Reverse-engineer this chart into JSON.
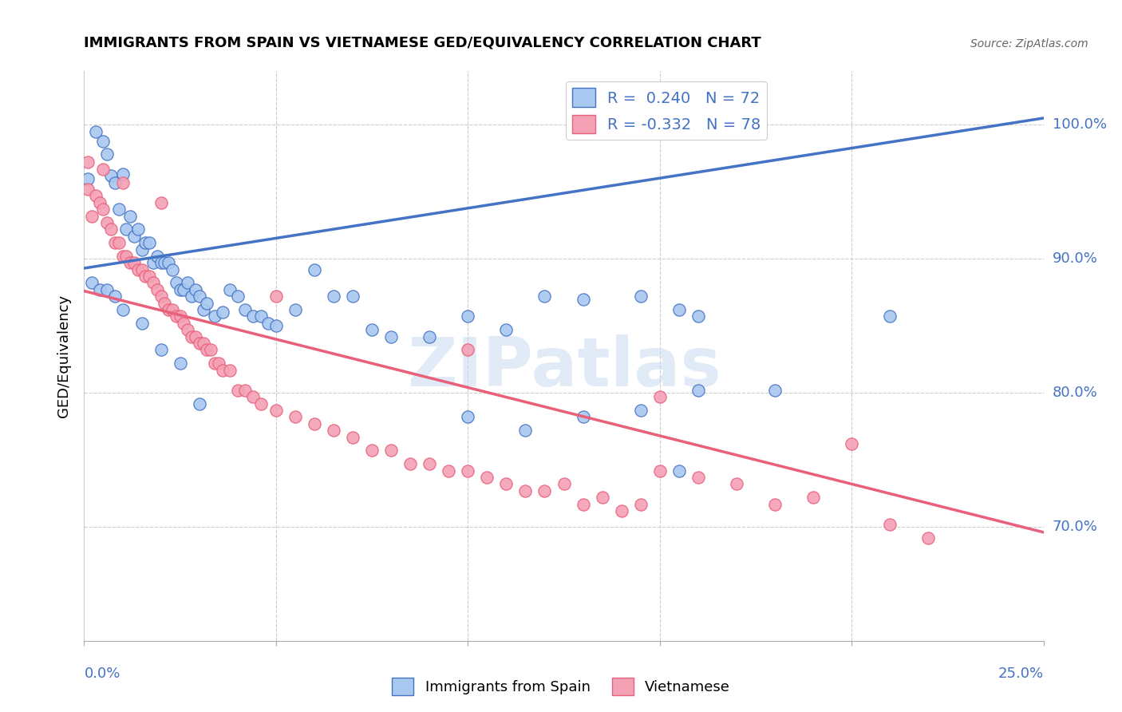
{
  "title": "IMMIGRANTS FROM SPAIN VS VIETNAMESE GED/EQUIVALENCY CORRELATION CHART",
  "source": "Source: ZipAtlas.com",
  "ylabel": "GED/Equivalency",
  "ytick_labels": [
    "70.0%",
    "80.0%",
    "90.0%",
    "100.0%"
  ],
  "ytick_values": [
    0.7,
    0.8,
    0.9,
    1.0
  ],
  "xlim": [
    0.0,
    0.25
  ],
  "ylim": [
    0.615,
    1.04
  ],
  "watermark": "ZIPatlas",
  "blue_line": {
    "x0": 0.0,
    "y0": 0.893,
    "x1": 0.25,
    "y1": 1.005
  },
  "pink_line": {
    "x0": 0.0,
    "y0": 0.876,
    "x1": 0.25,
    "y1": 0.696
  },
  "blue_color": "#4472C4",
  "pink_color": "#E8607A",
  "dot_blue_fill": "#A8C8F0",
  "dot_pink_fill": "#F4A0B5",
  "blue_scatter": [
    [
      0.001,
      0.96
    ],
    [
      0.003,
      0.995
    ],
    [
      0.005,
      0.988
    ],
    [
      0.006,
      0.978
    ],
    [
      0.007,
      0.962
    ],
    [
      0.008,
      0.957
    ],
    [
      0.009,
      0.937
    ],
    [
      0.01,
      0.963
    ],
    [
      0.011,
      0.922
    ],
    [
      0.012,
      0.932
    ],
    [
      0.013,
      0.917
    ],
    [
      0.014,
      0.922
    ],
    [
      0.015,
      0.907
    ],
    [
      0.016,
      0.912
    ],
    [
      0.017,
      0.912
    ],
    [
      0.018,
      0.897
    ],
    [
      0.019,
      0.902
    ],
    [
      0.02,
      0.897
    ],
    [
      0.021,
      0.897
    ],
    [
      0.022,
      0.897
    ],
    [
      0.023,
      0.892
    ],
    [
      0.024,
      0.882
    ],
    [
      0.025,
      0.877
    ],
    [
      0.026,
      0.877
    ],
    [
      0.027,
      0.882
    ],
    [
      0.028,
      0.872
    ],
    [
      0.029,
      0.877
    ],
    [
      0.03,
      0.872
    ],
    [
      0.031,
      0.862
    ],
    [
      0.032,
      0.867
    ],
    [
      0.034,
      0.857
    ],
    [
      0.036,
      0.86
    ],
    [
      0.038,
      0.877
    ],
    [
      0.04,
      0.872
    ],
    [
      0.042,
      0.862
    ],
    [
      0.044,
      0.857
    ],
    [
      0.046,
      0.857
    ],
    [
      0.048,
      0.852
    ],
    [
      0.05,
      0.85
    ],
    [
      0.055,
      0.862
    ],
    [
      0.06,
      0.892
    ],
    [
      0.065,
      0.872
    ],
    [
      0.07,
      0.872
    ],
    [
      0.075,
      0.847
    ],
    [
      0.08,
      0.842
    ],
    [
      0.09,
      0.842
    ],
    [
      0.1,
      0.857
    ],
    [
      0.11,
      0.847
    ],
    [
      0.12,
      0.872
    ],
    [
      0.13,
      0.87
    ],
    [
      0.145,
      0.872
    ],
    [
      0.155,
      0.862
    ],
    [
      0.1,
      0.782
    ],
    [
      0.115,
      0.772
    ],
    [
      0.13,
      0.782
    ],
    [
      0.145,
      0.787
    ],
    [
      0.16,
      0.802
    ],
    [
      0.18,
      0.802
    ],
    [
      0.002,
      0.882
    ],
    [
      0.004,
      0.877
    ],
    [
      0.006,
      0.877
    ],
    [
      0.008,
      0.872
    ],
    [
      0.01,
      0.862
    ],
    [
      0.015,
      0.852
    ],
    [
      0.02,
      0.832
    ],
    [
      0.025,
      0.822
    ],
    [
      0.03,
      0.792
    ],
    [
      0.155,
      0.742
    ],
    [
      0.21,
      0.857
    ],
    [
      0.16,
      0.857
    ]
  ],
  "pink_scatter": [
    [
      0.001,
      0.952
    ],
    [
      0.002,
      0.932
    ],
    [
      0.003,
      0.947
    ],
    [
      0.004,
      0.942
    ],
    [
      0.005,
      0.937
    ],
    [
      0.006,
      0.927
    ],
    [
      0.007,
      0.922
    ],
    [
      0.008,
      0.912
    ],
    [
      0.009,
      0.912
    ],
    [
      0.01,
      0.902
    ],
    [
      0.011,
      0.902
    ],
    [
      0.012,
      0.897
    ],
    [
      0.013,
      0.897
    ],
    [
      0.014,
      0.892
    ],
    [
      0.015,
      0.892
    ],
    [
      0.016,
      0.887
    ],
    [
      0.017,
      0.887
    ],
    [
      0.018,
      0.882
    ],
    [
      0.019,
      0.877
    ],
    [
      0.02,
      0.872
    ],
    [
      0.021,
      0.867
    ],
    [
      0.022,
      0.862
    ],
    [
      0.023,
      0.862
    ],
    [
      0.024,
      0.857
    ],
    [
      0.025,
      0.857
    ],
    [
      0.026,
      0.852
    ],
    [
      0.027,
      0.847
    ],
    [
      0.028,
      0.842
    ],
    [
      0.029,
      0.842
    ],
    [
      0.03,
      0.837
    ],
    [
      0.031,
      0.837
    ],
    [
      0.032,
      0.832
    ],
    [
      0.033,
      0.832
    ],
    [
      0.034,
      0.822
    ],
    [
      0.035,
      0.822
    ],
    [
      0.036,
      0.817
    ],
    [
      0.038,
      0.817
    ],
    [
      0.04,
      0.802
    ],
    [
      0.042,
      0.802
    ],
    [
      0.044,
      0.797
    ],
    [
      0.046,
      0.792
    ],
    [
      0.05,
      0.787
    ],
    [
      0.055,
      0.782
    ],
    [
      0.06,
      0.777
    ],
    [
      0.065,
      0.772
    ],
    [
      0.07,
      0.767
    ],
    [
      0.075,
      0.757
    ],
    [
      0.08,
      0.757
    ],
    [
      0.085,
      0.747
    ],
    [
      0.09,
      0.747
    ],
    [
      0.095,
      0.742
    ],
    [
      0.1,
      0.742
    ],
    [
      0.105,
      0.737
    ],
    [
      0.11,
      0.732
    ],
    [
      0.115,
      0.727
    ],
    [
      0.12,
      0.727
    ],
    [
      0.13,
      0.717
    ],
    [
      0.14,
      0.712
    ],
    [
      0.001,
      0.972
    ],
    [
      0.005,
      0.967
    ],
    [
      0.01,
      0.957
    ],
    [
      0.02,
      0.942
    ],
    [
      0.05,
      0.872
    ],
    [
      0.1,
      0.832
    ],
    [
      0.15,
      0.797
    ],
    [
      0.2,
      0.762
    ],
    [
      0.22,
      0.692
    ],
    [
      0.18,
      0.717
    ],
    [
      0.19,
      0.722
    ],
    [
      0.21,
      0.702
    ],
    [
      0.15,
      0.742
    ],
    [
      0.16,
      0.737
    ],
    [
      0.17,
      0.732
    ],
    [
      0.125,
      0.732
    ],
    [
      0.135,
      0.722
    ],
    [
      0.145,
      0.717
    ]
  ]
}
